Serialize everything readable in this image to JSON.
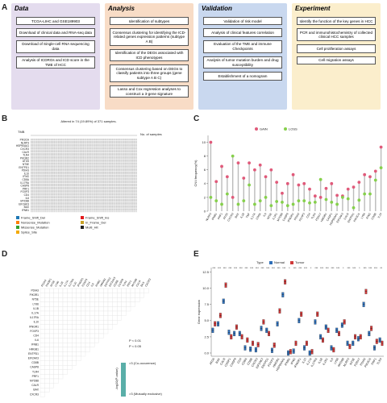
{
  "panel_labels": [
    "A",
    "B",
    "C",
    "D",
    "E"
  ],
  "workflow": {
    "columns": [
      {
        "title": "Data",
        "color": "#e4dcee",
        "steps": [
          "TCGA-LIHC and GSE189903",
          "Download of clinical data and RNA-seq data",
          "Download of Single-cell RNA sequencing data",
          "Analysis of ICDRGs and ICD score in the TME of HCC"
        ]
      },
      {
        "title": "Analysis",
        "color": "#f8dcc6",
        "steps": [
          "Identification of subtypes",
          "Consensus clustering for identifying the ICD-related genes expression patterns (subtype A B)",
          "Identification of the DEGs associated with ICD phenotypes",
          "Consensus clustering based on DEGs to classify patients into three groups (gene subtype A B C)",
          "Lasso and Cox regression analyses to construct a 3-gene signature"
        ]
      },
      {
        "title": "Validation",
        "color": "#c9d8ef",
        "steps": [
          "Validation of risk model",
          "Analysis of clinical features correlation",
          "Evaluation of the TME and immune Checkpoints",
          "Analysis of tumor mutation burden and drug susceptibility",
          "Establishment of a nomogram"
        ]
      },
      {
        "title": "Experiment",
        "color": "#fbeecc",
        "steps": [
          "Identify the function of the key genes in HCC",
          "PCR and immunohistochemistry of collected clinical HCC samples",
          "Cell proliferation assays",
          "Cell migration assays"
        ]
      }
    ]
  },
  "oncoplot": {
    "title": "Altered in 74 (19.89%) of 371 samples.",
    "tmb_label": "TMB",
    "samples_label": "No. of samples",
    "genes": [
      "PIK3CA",
      "NLRP3",
      "HSP90AA1",
      "CXCR3",
      "CALR",
      "TLR4",
      "PIK3R2",
      "ATG5",
      "NT5E",
      "ENTPD1",
      "PDIA3",
      "IL10",
      "IFNG",
      "CD8A",
      "IL17RA",
      "CASP8",
      "PRF1",
      "FOXP3",
      "CD4",
      "IL6",
      "MYD88",
      "EIF2AK3",
      "BAX",
      "IFNB1"
    ],
    "legend": [
      {
        "name": "Frame_Shift_Del",
        "color": "#1f78b4"
      },
      {
        "name": "Frame_Shift_Ins",
        "color": "#e31a1c"
      },
      {
        "name": "Nonsense_Mutation",
        "color": "#ff7f00"
      },
      {
        "name": "In_Frame_Del",
        "color": "#c9a227"
      },
      {
        "name": "Missense_Mutation",
        "color": "#33a02c"
      },
      {
        "name": "Multi_Hit",
        "color": "#222222"
      },
      {
        "name": "Splice_Site",
        "color": "#f2a900"
      }
    ]
  },
  "cooccurrence": {
    "genes": [
      "PDIA3",
      "PIK3R1",
      "NT5E",
      "LY96",
      "IL1B",
      "IL17A",
      "IL17RA",
      "IL10",
      "IFNGR1",
      "FOXP3",
      "CD4",
      "IL6",
      "IFNB1",
      "HMGB1",
      "ENTPD1",
      "EIF2AK3",
      "CD8B",
      "CASP8",
      "TLR4",
      "PRF1",
      "MYD88",
      "CALR",
      "BAX",
      "CXCR3"
    ],
    "legend": [
      "P < 0.01",
      "P < 0.05",
      ">3 (Co-occurence)",
      ">3 (Mutually exclusive)",
      "-log10(P-value)"
    ]
  },
  "chart_data": [
    {
      "type": "lollipop",
      "ylabel": "CNV.frequency(%)",
      "ylim": [
        0,
        11
      ],
      "yticks": [
        0,
        2,
        4,
        6,
        8,
        10
      ],
      "categories": [
        "NLRP3",
        "IFNB1",
        "PRF1",
        "ATG5",
        "CXCR3",
        "BAX",
        "IL1B",
        "TNF",
        "IL17A",
        "CD8A",
        "IL6",
        "NT5E",
        "IL1R1",
        "MYD88",
        "CASP8",
        "IFNGR1",
        "PDIA3",
        "FOXP3",
        "CD4",
        "TLR4",
        "P2RX7",
        "HMGB1",
        "CASP1",
        "HSP90AA1",
        "EIF2AK3",
        "CALR",
        "ENTPD1",
        "PIK3CA",
        "LY96",
        "IFNG",
        "CD8B",
        "IL10"
      ],
      "series": [
        {
          "name": "GAIN",
          "color": "#e05a7a",
          "values": [
            10,
            4.3,
            6.5,
            5,
            2,
            7,
            4.8,
            7,
            6,
            6.7,
            5,
            6,
            4.2,
            2.6,
            4,
            5.3,
            3.8,
            4,
            3.2,
            2.2,
            2,
            3.3,
            4,
            2.3,
            2.2,
            3.2,
            3.5,
            4.2,
            5.3,
            5,
            5.8,
            9.3
          ]
        },
        {
          "name": "LOSS",
          "color": "#86d04c",
          "values": [
            2,
            1.5,
            1,
            2.5,
            8,
            1,
            1.5,
            3.8,
            1,
            1.5,
            2,
            0.8,
            1.4,
            1.3,
            0.8,
            1,
            1.5,
            1.5,
            1.2,
            1.3,
            4.6,
            1.7,
            1.3,
            1,
            2,
            1.8,
            0.5,
            1.6,
            2.5,
            2.5,
            4.5,
            6.3
          ]
        }
      ]
    },
    {
      "type": "box",
      "ylabel": "Gene expression",
      "legend_title": "Type",
      "ylim": [
        -0.5,
        13.2
      ],
      "yticks": [
        {
          "value": 0,
          "label": "0.0"
        },
        {
          "value": 2.5,
          "label": "2.5"
        },
        {
          "value": 5,
          "label": "5.0"
        },
        {
          "value": 7.5,
          "label": "7.5"
        },
        {
          "value": 10,
          "label": "10.0"
        },
        {
          "value": 12.5,
          "label": "12.5"
        }
      ],
      "categories": [
        "ATG5",
        "BAX",
        "CALR",
        "CASP1",
        "CASP8",
        "CD4",
        "CD8A",
        "CD8B",
        "CXCR3",
        "EIF2AK3",
        "ENTPD1",
        "FOXP3",
        "HMGB1",
        "HSP90AA1",
        "IFNB1",
        "IFNG",
        "IFNGR1",
        "IL10",
        "IL17A",
        "IL17RA",
        "IL1B",
        "IL1R1",
        "IL6",
        "LY96",
        "MYD88",
        "NLRP3",
        "NT5E",
        "P2RX7",
        "PDIA3",
        "PIK3CA",
        "PRF1",
        "TLR4"
      ],
      "significance": [
        "***",
        "***",
        "***",
        "***",
        "***",
        "***",
        "***",
        "***",
        "***",
        "***",
        "***",
        "***",
        "***",
        "***",
        "*",
        "***",
        "***",
        "***",
        "*",
        "***",
        "***",
        "***",
        "***",
        "***",
        "*",
        "***",
        "***",
        "*",
        "***",
        "***",
        "***",
        "**"
      ],
      "series": [
        {
          "name": "Normal",
          "color": "#2f6fb8",
          "values": [
            3.5,
            4.5,
            8,
            3.2,
            3,
            3,
            0.8,
            0.6,
            0.5,
            3.8,
            3.5,
            0.4,
            4.5,
            9,
            0,
            0.3,
            5,
            0.8,
            0,
            4.8,
            2.5,
            4,
            0.8,
            3.5,
            4.3,
            1.5,
            1.5,
            2.2,
            7.5,
            3,
            0.8,
            2
          ]
        },
        {
          "name": "Tumor",
          "color": "#d03a3a",
          "values": [
            4.5,
            5.8,
            10.5,
            2.5,
            4,
            2.5,
            2,
            1.5,
            1.3,
            4.8,
            3,
            1.2,
            6.5,
            11,
            0.2,
            1.5,
            6,
            1.5,
            0.2,
            6,
            2,
            3.5,
            0.5,
            3,
            4.8,
            1,
            2.5,
            2.5,
            9.5,
            3.8,
            1.8,
            1.5
          ]
        }
      ]
    }
  ]
}
